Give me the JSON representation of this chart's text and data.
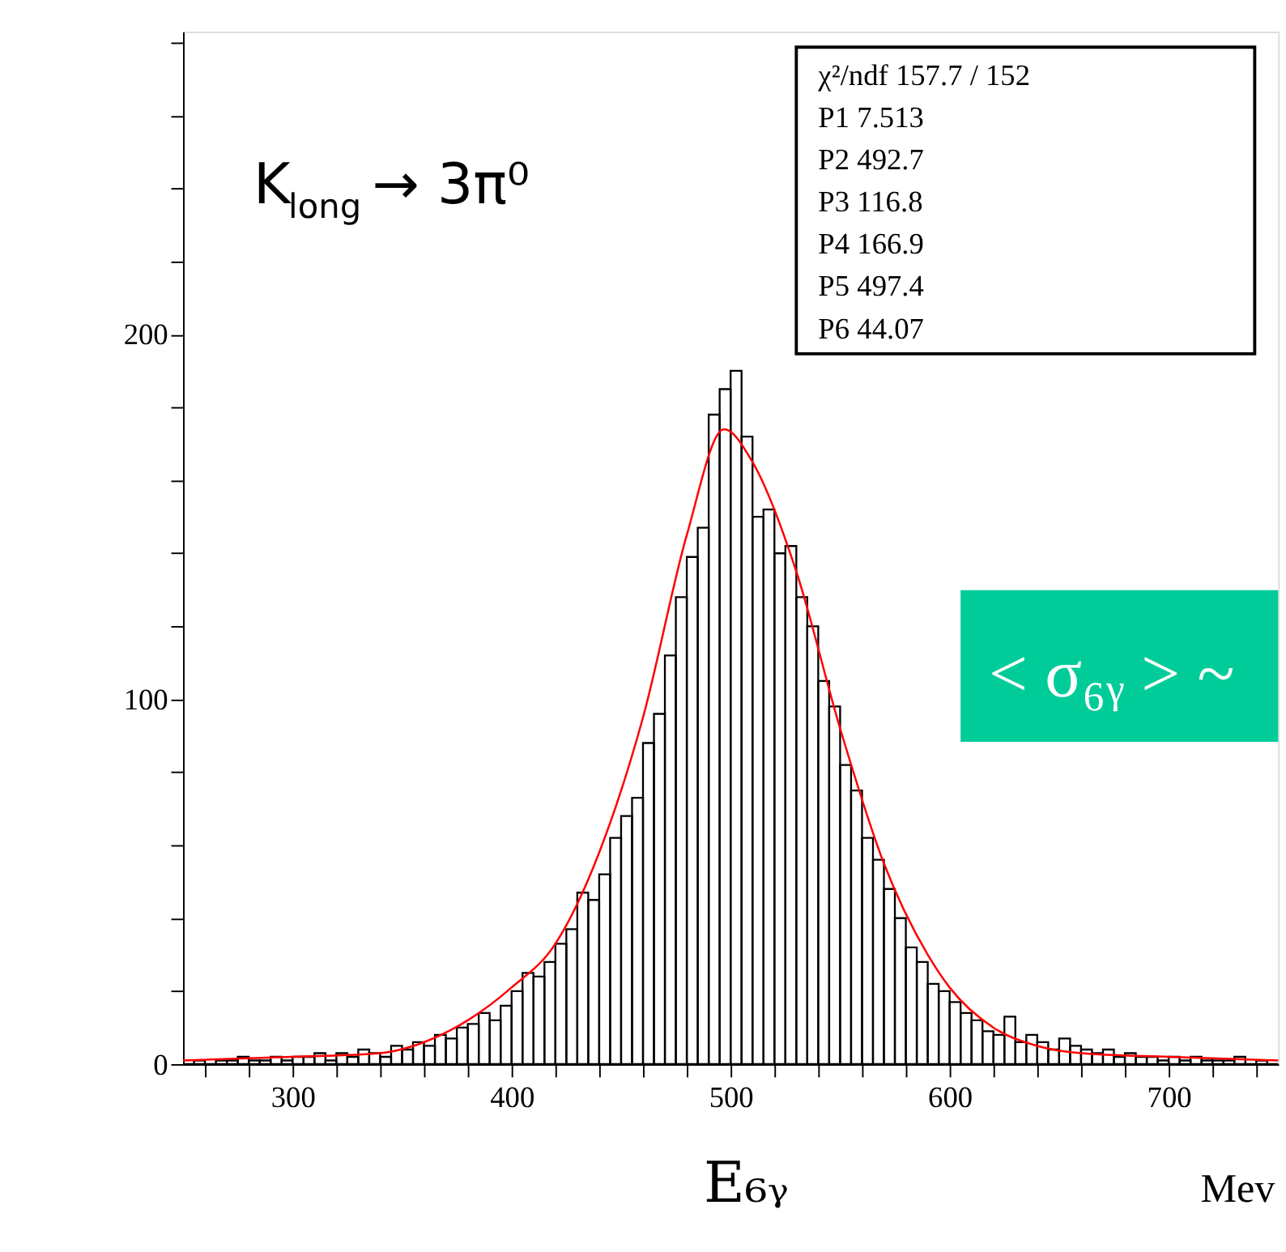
{
  "chart_data": {
    "type": "histogram",
    "xlabel": "E₆ᵧ",
    "xlim": [
      250,
      750
    ],
    "ylim": [
      0,
      283
    ],
    "xticks": [
      {
        "value": 260,
        "label": null
      },
      {
        "value": 280,
        "label": null
      },
      300,
      {
        "value": 320,
        "label": null
      },
      {
        "value": 340,
        "label": null
      },
      {
        "value": 360,
        "label": null
      },
      {
        "value": 380,
        "label": null
      },
      400,
      {
        "value": 420,
        "label": null
      },
      {
        "value": 440,
        "label": null
      },
      {
        "value": 460,
        "label": null
      },
      {
        "value": 480,
        "label": null
      },
      500,
      {
        "value": 520,
        "label": null
      },
      {
        "value": 540,
        "label": null
      },
      {
        "value": 560,
        "label": null
      },
      {
        "value": 580,
        "label": null
      },
      600,
      {
        "value": 620,
        "label": null
      },
      {
        "value": 640,
        "label": null
      },
      {
        "value": 660,
        "label": null
      },
      {
        "value": 680,
        "label": null
      },
      700,
      {
        "value": 720,
        "label": null
      },
      {
        "value": 740,
        "label": null
      }
    ],
    "yticks": [
      0,
      {
        "value": 20,
        "label": null
      },
      {
        "value": 40,
        "label": null
      },
      {
        "value": 60,
        "label": null
      },
      {
        "value": 80,
        "label": null
      },
      100,
      {
        "value": 120,
        "label": null
      },
      {
        "value": 140,
        "label": null
      },
      {
        "value": 160,
        "label": null
      },
      {
        "value": 180,
        "label": null
      },
      200,
      {
        "value": 220,
        "label": null
      },
      {
        "value": 240,
        "label": null
      },
      {
        "value": 260,
        "label": null
      },
      {
        "value": 280,
        "label": null
      }
    ],
    "bins": [
      250,
      255,
      260,
      265,
      270,
      275,
      280,
      285,
      290,
      295,
      300,
      305,
      310,
      315,
      320,
      325,
      330,
      335,
      340,
      345,
      350,
      355,
      360,
      365,
      370,
      375,
      380,
      385,
      390,
      395,
      400,
      405,
      410,
      415,
      420,
      425,
      430,
      435,
      440,
      445,
      450,
      455,
      460,
      465,
      470,
      475,
      480,
      485,
      490,
      495,
      500,
      505,
      510,
      515,
      520,
      525,
      530,
      535,
      540,
      545,
      550,
      555,
      560,
      565,
      570,
      575,
      580,
      585,
      590,
      595,
      600,
      605,
      610,
      615,
      620,
      625,
      630,
      635,
      640,
      645,
      650,
      655,
      660,
      665,
      670,
      675,
      680,
      685,
      690,
      695,
      700,
      705,
      710,
      715,
      720,
      725,
      730,
      735,
      740,
      745,
      750
    ],
    "series": [
      {
        "color": "#000000",
        "values": [
          0,
          1,
          0,
          1,
          1,
          2,
          1,
          1,
          2,
          1,
          2,
          2,
          3,
          1,
          3,
          2,
          4,
          3,
          2,
          5,
          4,
          6,
          5,
          8,
          7,
          10,
          11,
          14,
          12,
          16,
          20,
          25,
          24,
          28,
          33,
          37,
          47,
          45,
          52,
          62,
          68,
          73,
          88,
          96,
          112,
          128,
          139,
          147,
          178,
          185,
          190,
          172,
          150,
          152,
          140,
          142,
          128,
          120,
          105,
          98,
          82,
          75,
          62,
          56,
          48,
          40,
          32,
          28,
          22,
          20,
          17,
          14,
          12,
          9,
          8,
          13,
          6,
          8,
          6,
          4,
          7,
          5,
          4,
          3,
          4,
          2,
          3,
          2,
          2,
          1,
          2,
          1,
          2,
          1,
          1,
          1,
          2,
          0,
          1,
          0
        ]
      },
      {
        "type": "line",
        "color": "#ff0000",
        "x": [
          250,
          300,
          340,
          360,
          380,
          400,
          420,
          440,
          460,
          480,
          497,
          510,
          530,
          550,
          570,
          590,
          600,
          620,
          640,
          660,
          700,
          750
        ],
        "values": [
          1,
          2,
          3,
          6,
          12,
          21,
          33,
          58,
          95,
          145,
          174,
          165,
          135,
          92,
          55,
          30,
          21,
          10,
          5,
          3,
          2,
          1
        ]
      }
    ],
    "annotations": [
      "K$_{long}$ → 3π⁰",
      "χ²/ndf   157.7  /  152",
      "P1   7.513",
      "P2   492.7",
      "P3   116.8",
      "P4   166.9",
      "P5   497.4",
      "P6   44.07",
      "< σ₆ᵧ > ~",
      "Mev"
    ]
  }
}
